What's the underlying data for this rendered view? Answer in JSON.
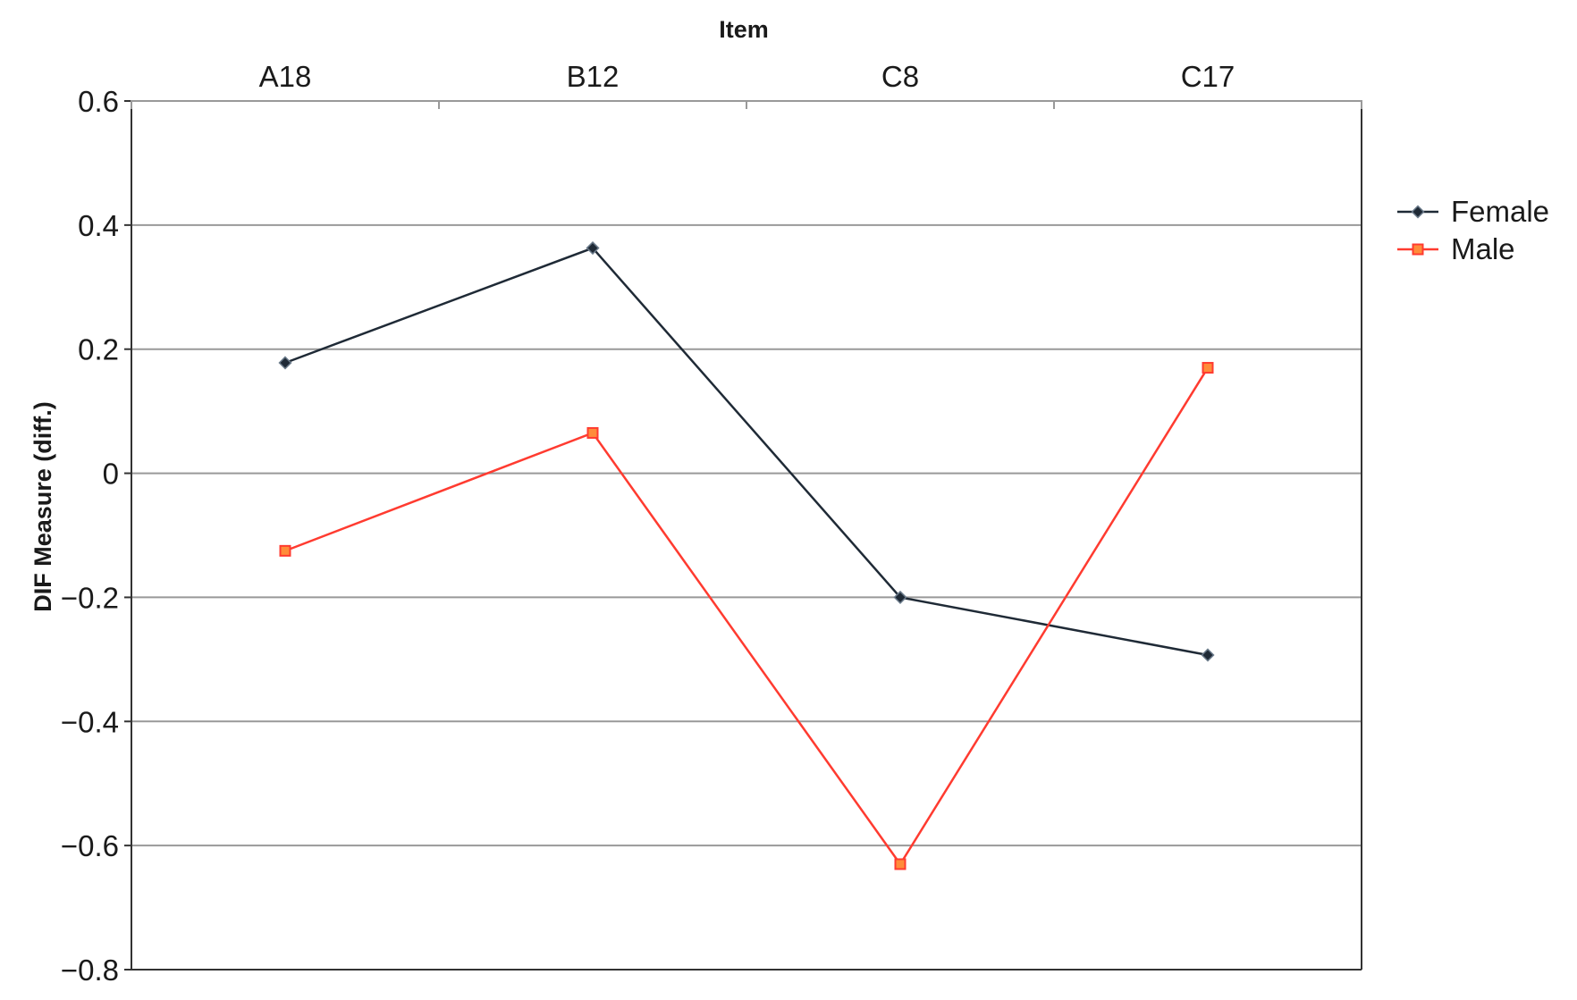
{
  "chart_data": {
    "type": "line",
    "xlabel": "Item",
    "ylabel": "DIF Measure (diff.)",
    "categories": [
      "A18",
      "B12",
      "C8",
      "C17"
    ],
    "ylim": [
      -0.8,
      0.6
    ],
    "yticks": [
      0.6,
      0.4,
      0.2,
      0,
      -0.2,
      -0.4,
      -0.6,
      -0.8
    ],
    "ytick_labels": [
      "0.6",
      "0.4",
      "0.2",
      "0",
      "−0.2",
      "−0.4",
      "−0.6",
      "−0.8"
    ],
    "grid": true,
    "x_axis_position": "top",
    "legend_position": "right",
    "series": [
      {
        "name": "Female",
        "values": [
          0.178,
          0.363,
          -0.2,
          -0.293
        ],
        "color": "#1f2a36",
        "marker": "diamond"
      },
      {
        "name": "Male",
        "values": [
          -0.125,
          0.065,
          -0.63,
          0.17
        ],
        "color": "#ff3b30",
        "marker": "square"
      }
    ]
  }
}
